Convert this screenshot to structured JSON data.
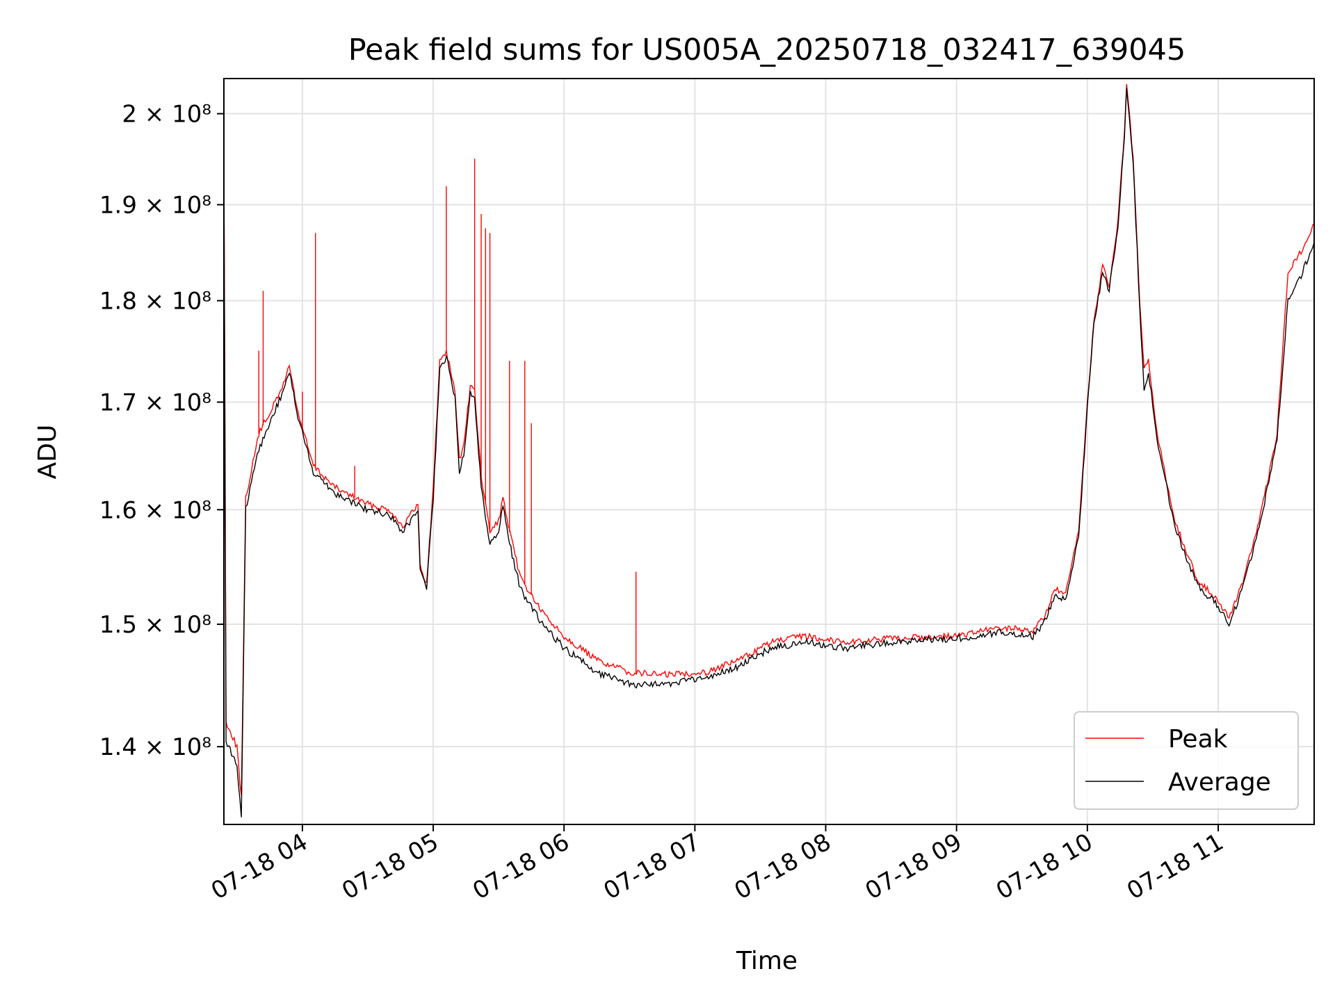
{
  "chart_data": {
    "type": "line",
    "title": "Peak field sums for US005A_20250718_032417_639045",
    "xlabel": "Time",
    "ylabel": "ADU",
    "yscale": "log",
    "ylim": [
      134000000,
      204000000
    ],
    "xlim": [
      "2025-07-18 03:24",
      "2025-07-18 11:44"
    ],
    "grid": true,
    "legend_position": "lower-right",
    "x_ticks": [
      {
        "time": "2025-07-18 04:00",
        "label": "07-18 04"
      },
      {
        "time": "2025-07-18 05:00",
        "label": "07-18 05"
      },
      {
        "time": "2025-07-18 06:00",
        "label": "07-18 06"
      },
      {
        "time": "2025-07-18 07:00",
        "label": "07-18 07"
      },
      {
        "time": "2025-07-18 08:00",
        "label": "07-18 08"
      },
      {
        "time": "2025-07-18 09:00",
        "label": "07-18 09"
      },
      {
        "time": "2025-07-18 10:00",
        "label": "07-18 10"
      },
      {
        "time": "2025-07-18 11:00",
        "label": "07-18 11"
      }
    ],
    "y_ticks": [
      {
        "value": 140000000,
        "label": "1.4 × 10⁸"
      },
      {
        "value": 150000000,
        "label": "1.5 × 10⁸"
      },
      {
        "value": 160000000,
        "label": "1.6 × 10⁸"
      },
      {
        "value": 170000000,
        "label": "1.7 × 10⁸"
      },
      {
        "value": 180000000,
        "label": "1.8 × 10⁸"
      },
      {
        "value": 190000000,
        "label": "1.9 × 10⁸"
      },
      {
        "value": 200000000,
        "label": "2 × 10⁸"
      }
    ],
    "series": [
      {
        "name": "Peak",
        "color": "#ff0000",
        "points": [
          [
            "2025-07-18 03:24",
            196000000
          ],
          [
            "2025-07-18 03:25",
            142000000
          ],
          [
            "2025-07-18 03:30",
            140000000
          ],
          [
            "2025-07-18 03:32",
            136000000
          ],
          [
            "2025-07-18 03:34",
            161000000
          ],
          [
            "2025-07-18 03:40",
            167000000
          ],
          [
            "2025-07-18 03:45",
            169000000
          ],
          [
            "2025-07-18 03:50",
            171000000
          ],
          [
            "2025-07-18 03:54",
            173500000
          ],
          [
            "2025-07-18 03:58",
            169000000
          ],
          [
            "2025-07-18 04:05",
            164000000
          ],
          [
            "2025-07-18 04:15",
            162000000
          ],
          [
            "2025-07-18 04:30",
            160500000
          ],
          [
            "2025-07-18 04:40",
            160000000
          ],
          [
            "2025-07-18 04:46",
            158500000
          ],
          [
            "2025-07-18 04:53",
            160500000
          ],
          [
            "2025-07-18 04:54",
            155000000
          ],
          [
            "2025-07-18 04:57",
            153500000
          ],
          [
            "2025-07-18 05:00",
            162000000
          ],
          [
            "2025-07-18 05:03",
            174000000
          ],
          [
            "2025-07-18 05:06",
            175000000
          ],
          [
            "2025-07-18 05:10",
            171000000
          ],
          [
            "2025-07-18 05:12",
            164500000
          ],
          [
            "2025-07-18 05:14",
            166000000
          ],
          [
            "2025-07-18 05:17",
            171500000
          ],
          [
            "2025-07-18 05:19",
            171000000
          ],
          [
            "2025-07-18 05:22",
            163000000
          ],
          [
            "2025-07-18 05:26",
            158000000
          ],
          [
            "2025-07-18 05:30",
            159000000
          ],
          [
            "2025-07-18 05:32",
            161000000
          ],
          [
            "2025-07-18 05:35",
            158000000
          ],
          [
            "2025-07-18 05:40",
            154000000
          ],
          [
            "2025-07-18 05:50",
            151000000
          ],
          [
            "2025-07-18 06:00",
            149000000
          ],
          [
            "2025-07-18 06:15",
            147000000
          ],
          [
            "2025-07-18 06:30",
            146000000
          ],
          [
            "2025-07-18 06:45",
            145800000
          ],
          [
            "2025-07-18 07:05",
            146000000
          ],
          [
            "2025-07-18 07:20",
            147000000
          ],
          [
            "2025-07-18 07:35",
            148500000
          ],
          [
            "2025-07-18 07:50",
            149000000
          ],
          [
            "2025-07-18 08:10",
            148500000
          ],
          [
            "2025-07-18 08:30",
            148800000
          ],
          [
            "2025-07-18 09:00",
            149000000
          ],
          [
            "2025-07-18 09:20",
            149700000
          ],
          [
            "2025-07-18 09:35",
            149500000
          ],
          [
            "2025-07-18 09:40",
            150500000
          ],
          [
            "2025-07-18 09:45",
            153000000
          ],
          [
            "2025-07-18 09:50",
            152500000
          ],
          [
            "2025-07-18 09:56",
            158000000
          ],
          [
            "2025-07-18 10:00",
            170000000
          ],
          [
            "2025-07-18 10:03",
            178000000
          ],
          [
            "2025-07-18 10:07",
            183500000
          ],
          [
            "2025-07-18 10:10",
            181500000
          ],
          [
            "2025-07-18 10:14",
            188000000
          ],
          [
            "2025-07-18 10:17",
            198000000
          ],
          [
            "2025-07-18 10:18",
            203500000
          ],
          [
            "2025-07-18 10:21",
            195000000
          ],
          [
            "2025-07-18 10:24",
            180000000
          ],
          [
            "2025-07-18 10:26",
            173000000
          ],
          [
            "2025-07-18 10:28",
            174000000
          ],
          [
            "2025-07-18 10:32",
            167000000
          ],
          [
            "2025-07-18 10:40",
            159000000
          ],
          [
            "2025-07-18 10:50",
            154000000
          ],
          [
            "2025-07-18 11:00",
            152000000
          ],
          [
            "2025-07-18 11:05",
            150500000
          ],
          [
            "2025-07-18 11:12",
            154000000
          ],
          [
            "2025-07-18 11:20",
            160000000
          ],
          [
            "2025-07-18 11:27",
            167000000
          ],
          [
            "2025-07-18 11:32",
            183000000
          ],
          [
            "2025-07-18 11:38",
            185000000
          ],
          [
            "2025-07-18 11:44",
            188000000
          ]
        ],
        "spikes": [
          [
            "2025-07-18 03:40",
            175000000
          ],
          [
            "2025-07-18 03:42",
            181000000
          ],
          [
            "2025-07-18 04:00",
            171000000
          ],
          [
            "2025-07-18 04:06",
            187000000
          ],
          [
            "2025-07-18 04:24",
            164000000
          ],
          [
            "2025-07-18 05:06",
            192000000
          ],
          [
            "2025-07-18 05:19",
            195000000
          ],
          [
            "2025-07-18 05:22",
            189000000
          ],
          [
            "2025-07-18 05:24",
            187500000
          ],
          [
            "2025-07-18 05:26",
            187000000
          ],
          [
            "2025-07-18 05:35",
            174000000
          ],
          [
            "2025-07-18 05:42",
            174000000
          ],
          [
            "2025-07-18 05:45",
            168000000
          ],
          [
            "2025-07-18 06:33",
            154500000
          ]
        ]
      },
      {
        "name": "Average",
        "color": "#000000",
        "points": [
          [
            "2025-07-18 03:24",
            194000000
          ],
          [
            "2025-07-18 03:25",
            140500000
          ],
          [
            "2025-07-18 03:30",
            138500000
          ],
          [
            "2025-07-18 03:32",
            134500000
          ],
          [
            "2025-07-18 03:34",
            160000000
          ],
          [
            "2025-07-18 03:40",
            165500000
          ],
          [
            "2025-07-18 03:45",
            168000000
          ],
          [
            "2025-07-18 03:50",
            170500000
          ],
          [
            "2025-07-18 03:54",
            173000000
          ],
          [
            "2025-07-18 03:58",
            168500000
          ],
          [
            "2025-07-18 04:05",
            163500000
          ],
          [
            "2025-07-18 04:15",
            161500000
          ],
          [
            "2025-07-18 04:30",
            160000000
          ],
          [
            "2025-07-18 04:40",
            159500000
          ],
          [
            "2025-07-18 04:46",
            158000000
          ],
          [
            "2025-07-18 04:53",
            160000000
          ],
          [
            "2025-07-18 04:54",
            154500000
          ],
          [
            "2025-07-18 04:57",
            153000000
          ],
          [
            "2025-07-18 05:00",
            161000000
          ],
          [
            "2025-07-18 05:03",
            173000000
          ],
          [
            "2025-07-18 05:06",
            174500000
          ],
          [
            "2025-07-18 05:10",
            170500000
          ],
          [
            "2025-07-18 05:12",
            163500000
          ],
          [
            "2025-07-18 05:14",
            165000000
          ],
          [
            "2025-07-18 05:17",
            171000000
          ],
          [
            "2025-07-18 05:19",
            170500000
          ],
          [
            "2025-07-18 05:22",
            162000000
          ],
          [
            "2025-07-18 05:26",
            157000000
          ],
          [
            "2025-07-18 05:30",
            158000000
          ],
          [
            "2025-07-18 05:32",
            160500000
          ],
          [
            "2025-07-18 05:35",
            157000000
          ],
          [
            "2025-07-18 05:40",
            153000000
          ],
          [
            "2025-07-18 05:50",
            150000000
          ],
          [
            "2025-07-18 06:00",
            148000000
          ],
          [
            "2025-07-18 06:15",
            146000000
          ],
          [
            "2025-07-18 06:30",
            145000000
          ],
          [
            "2025-07-18 06:45",
            145000000
          ],
          [
            "2025-07-18 07:05",
            145500000
          ],
          [
            "2025-07-18 07:20",
            146500000
          ],
          [
            "2025-07-18 07:35",
            148000000
          ],
          [
            "2025-07-18 07:50",
            148500000
          ],
          [
            "2025-07-18 08:10",
            148000000
          ],
          [
            "2025-07-18 08:30",
            148500000
          ],
          [
            "2025-07-18 09:00",
            148800000
          ],
          [
            "2025-07-18 09:20",
            149300000
          ],
          [
            "2025-07-18 09:35",
            149000000
          ],
          [
            "2025-07-18 09:40",
            150000000
          ],
          [
            "2025-07-18 09:45",
            152500000
          ],
          [
            "2025-07-18 09:50",
            152000000
          ],
          [
            "2025-07-18 09:56",
            157500000
          ],
          [
            "2025-07-18 10:00",
            169500000
          ],
          [
            "2025-07-18 10:03",
            177500000
          ],
          [
            "2025-07-18 10:07",
            183000000
          ],
          [
            "2025-07-18 10:10",
            181000000
          ],
          [
            "2025-07-18 10:14",
            187500000
          ],
          [
            "2025-07-18 10:17",
            197500000
          ],
          [
            "2025-07-18 10:18",
            203000000
          ],
          [
            "2025-07-18 10:21",
            194500000
          ],
          [
            "2025-07-18 10:24",
            179500000
          ],
          [
            "2025-07-18 10:26",
            171000000
          ],
          [
            "2025-07-18 10:28",
            173000000
          ],
          [
            "2025-07-18 10:32",
            166500000
          ],
          [
            "2025-07-18 10:40",
            158500000
          ],
          [
            "2025-07-18 10:50",
            153500000
          ],
          [
            "2025-07-18 11:00",
            151500000
          ],
          [
            "2025-07-18 11:05",
            150000000
          ],
          [
            "2025-07-18 11:12",
            153500000
          ],
          [
            "2025-07-18 11:20",
            159500000
          ],
          [
            "2025-07-18 11:27",
            166500000
          ],
          [
            "2025-07-18 11:32",
            180000000
          ],
          [
            "2025-07-18 11:38",
            182500000
          ],
          [
            "2025-07-18 11:44",
            186000000
          ]
        ]
      }
    ]
  }
}
